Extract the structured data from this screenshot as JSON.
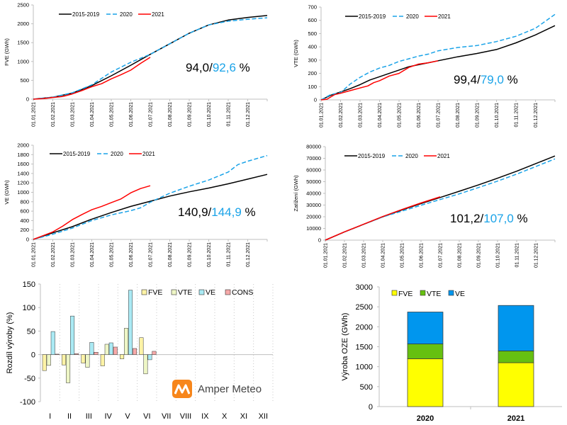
{
  "chart_data": [
    {
      "id": "fve",
      "type": "line",
      "ylabel": "FVE  (GWh)",
      "ylim": [
        0,
        2500
      ],
      "yticks": [
        0,
        500,
        1000,
        1500,
        2000,
        2500
      ],
      "x_ticks": [
        "01.01.2021",
        "01.02.2021",
        "01.03.2021",
        "01.04.2021",
        "01.05.2021",
        "01.06.2021",
        "01.07.2021",
        "01.08.2021",
        "01.09.2021",
        "01.10.2021",
        "01.11.2021",
        "01.12.2021"
      ],
      "x_unit": "month index (0 = 1 Jan, 12 = 31 Dec)",
      "annotation": {
        "black": "94,0/",
        "blue": "92,6",
        "suffix": " %"
      },
      "series": [
        {
          "name": "2015-2019",
          "color": "#000000",
          "style": "solid",
          "x": [
            0,
            1,
            2,
            3,
            4,
            5,
            6,
            7,
            8,
            9,
            10,
            11,
            12
          ],
          "y": [
            0,
            50,
            160,
            360,
            620,
            900,
            1190,
            1470,
            1750,
            1970,
            2100,
            2170,
            2220
          ]
        },
        {
          "name": "2020",
          "color": "#1aa3e8",
          "style": "dashed",
          "x": [
            0,
            1,
            2,
            3,
            4,
            5,
            6,
            7,
            8,
            9,
            10,
            11,
            12
          ],
          "y": [
            0,
            55,
            170,
            380,
            720,
            980,
            1190,
            1470,
            1750,
            1970,
            2070,
            2120,
            2160
          ]
        },
        {
          "name": "2021",
          "color": "#ff0000",
          "style": "solid",
          "x": [
            0,
            0.5,
            1,
            1.5,
            2,
            2.5,
            3,
            3.5,
            4,
            4.5,
            5,
            5.5,
            6
          ],
          "y": [
            0,
            15,
            45,
            70,
            140,
            230,
            330,
            410,
            540,
            650,
            770,
            950,
            1110
          ]
        }
      ]
    },
    {
      "id": "vte",
      "type": "line",
      "ylabel": "VTE  (GWh)",
      "ylim": [
        0,
        700
      ],
      "yticks": [
        0,
        100,
        200,
        300,
        400,
        500,
        600,
        700
      ],
      "x_ticks": [
        "01.01.2021",
        "01.02.2021",
        "01.03.2021",
        "01.04.2021",
        "01.05.2021",
        "01.06.2021",
        "01.07.2021",
        "01.08.2021",
        "01.09.2021",
        "01.10.2021",
        "01.11.2021",
        "01.12.2021"
      ],
      "annotation": {
        "black": "99,4/",
        "blue": "79,0",
        "suffix": " %"
      },
      "series": [
        {
          "name": "2015-2019",
          "color": "#000000",
          "style": "solid",
          "x": [
            0,
            0.5,
            1,
            1.5,
            2,
            2.5,
            3,
            3.5,
            4,
            4.5,
            5,
            5.5,
            6,
            7,
            8,
            9,
            10,
            11,
            12
          ],
          "y": [
            0,
            35,
            60,
            85,
            115,
            150,
            175,
            200,
            225,
            250,
            265,
            280,
            295,
            325,
            350,
            380,
            430,
            490,
            560
          ]
        },
        {
          "name": "2020",
          "color": "#1aa3e8",
          "style": "dashed",
          "x": [
            0,
            0.5,
            1,
            1.5,
            2,
            2.5,
            3,
            3.5,
            4,
            4.5,
            5,
            5.5,
            6,
            7,
            8,
            9,
            10,
            11,
            12
          ],
          "y": [
            0,
            40,
            55,
            120,
            170,
            210,
            240,
            260,
            290,
            310,
            330,
            345,
            370,
            395,
            410,
            440,
            480,
            540,
            645
          ]
        },
        {
          "name": "2021",
          "color": "#ff0000",
          "style": "solid",
          "x": [
            0,
            0.3,
            0.7,
            1,
            1.5,
            2,
            2.4,
            2.7,
            3,
            3.5,
            4,
            4.5,
            5,
            5.5,
            6
          ],
          "y": [
            0,
            5,
            40,
            50,
            70,
            90,
            105,
            130,
            145,
            180,
            200,
            245,
            270,
            280,
            295
          ]
        }
      ]
    },
    {
      "id": "ve",
      "type": "line",
      "ylabel": "VE  (GWh)",
      "ylim": [
        0,
        2000
      ],
      "yticks": [
        0,
        200,
        400,
        600,
        800,
        1000,
        1200,
        1400,
        1600,
        1800,
        2000
      ],
      "x_ticks": [
        "01.01.2021",
        "01.02.2021",
        "01.03.2021",
        "01.04.2021",
        "01.05.2021",
        "01.06.2021",
        "01.07.2021",
        "01.08.2021",
        "01.09.2021",
        "01.10.2021",
        "01.11.2021",
        "01.12.2021"
      ],
      "annotation": {
        "black": "140,9/",
        "blue": "144,9",
        "suffix": " %"
      },
      "series": [
        {
          "name": "2015-2019",
          "color": "#000000",
          "style": "solid",
          "x": [
            0,
            1,
            2,
            3,
            4,
            5,
            6,
            7,
            8,
            9,
            10,
            11,
            12
          ],
          "y": [
            0,
            140,
            270,
            430,
            570,
            700,
            810,
            920,
            1010,
            1090,
            1180,
            1280,
            1380
          ]
        },
        {
          "name": "2020",
          "color": "#1aa3e8",
          "style": "dashed",
          "x": [
            0,
            1,
            2,
            3,
            4,
            5,
            5.5,
            6,
            7,
            8,
            9,
            10,
            10.5,
            11,
            12
          ],
          "y": [
            0,
            110,
            240,
            400,
            520,
            610,
            670,
            790,
            980,
            1130,
            1260,
            1430,
            1590,
            1660,
            1780
          ]
        },
        {
          "name": "2021",
          "color": "#ff0000",
          "style": "solid",
          "x": [
            0,
            0.5,
            1,
            1.5,
            2,
            2.5,
            3,
            3.5,
            4,
            4.5,
            5,
            5.5,
            6
          ],
          "y": [
            0,
            80,
            160,
            280,
            420,
            530,
            630,
            700,
            780,
            860,
            990,
            1080,
            1140
          ]
        }
      ]
    },
    {
      "id": "zatizeni",
      "type": "line",
      "ylabel": "Zatížení  (GWh)",
      "ylim": [
        0,
        80000
      ],
      "yticks": [
        0,
        10000,
        20000,
        30000,
        40000,
        50000,
        60000,
        70000,
        80000
      ],
      "x_ticks": [
        "01.01.2021",
        "01.02.2021",
        "01.03.2021",
        "01.04.2021",
        "01.05.2021",
        "01.06.2021",
        "01.07.2021",
        "01.08.2021",
        "01.09.2021",
        "01.10.2021",
        "01.11.2021",
        "01.12.2021"
      ],
      "annotation": {
        "black": "101,2/",
        "blue": "107,0",
        "suffix": " %"
      },
      "series": [
        {
          "name": "2015-2019",
          "color": "#000000",
          "style": "solid",
          "x": [
            0,
            1,
            2,
            3,
            4,
            5,
            6,
            7,
            8,
            9,
            10,
            11,
            12
          ],
          "y": [
            0,
            7000,
            13500,
            20000,
            25800,
            31300,
            36500,
            41800,
            47200,
            53000,
            59000,
            65500,
            72000
          ]
        },
        {
          "name": "2020",
          "color": "#1aa3e8",
          "style": "dashed",
          "x": [
            0,
            1,
            2,
            3,
            4,
            5,
            6,
            7,
            8,
            9,
            10,
            11,
            12
          ],
          "y": [
            0,
            7000,
            13500,
            19800,
            24800,
            29800,
            34700,
            39600,
            45000,
            50500,
            56500,
            63000,
            69500
          ]
        },
        {
          "name": "2021",
          "color": "#ff0000",
          "style": "solid",
          "x": [
            0,
            1,
            2,
            3,
            4,
            5,
            6
          ],
          "y": [
            0,
            7100,
            13600,
            20200,
            26200,
            31800,
            37000
          ]
        }
      ]
    },
    {
      "id": "rozdil",
      "type": "bar",
      "ylabel": "Rozdíl výroby (%)",
      "ylim": [
        -100,
        150
      ],
      "yticks": [
        -100,
        -50,
        0,
        50,
        100,
        150
      ],
      "categories": [
        "I",
        "II",
        "III",
        "IV",
        "V",
        "VI",
        "VII",
        "VIII",
        "IX",
        "X",
        "XI",
        "XII"
      ],
      "series": [
        {
          "name": "FVE",
          "color": "#fdf3a6",
          "values": [
            -34,
            -22,
            -18,
            -24,
            -9,
            36,
            null,
            null,
            null,
            null,
            null,
            null
          ]
        },
        {
          "name": "VTE",
          "color": "#eef6c6",
          "values": [
            -23,
            -60,
            -27,
            22,
            56,
            -41,
            null,
            null,
            null,
            null,
            null,
            null
          ]
        },
        {
          "name": "VE",
          "color": "#aaeaf4",
          "values": [
            49,
            82,
            26,
            25,
            137,
            -11,
            null,
            null,
            null,
            null,
            null,
            null
          ]
        },
        {
          "name": "CONS",
          "color": "#f6a9a9",
          "values": [
            1,
            2,
            5,
            16,
            13,
            7,
            null,
            null,
            null,
            null,
            null,
            null
          ]
        }
      ]
    },
    {
      "id": "vyroba-oze",
      "type": "bar",
      "stacked": true,
      "ylabel": "Výroba OZE (GWh)",
      "ylim": [
        0,
        3000
      ],
      "yticks": [
        0,
        500,
        1000,
        1500,
        2000,
        2500,
        3000
      ],
      "categories": [
        "2020",
        "2021"
      ],
      "series": [
        {
          "name": "FVE",
          "color": "#ffff00",
          "values": [
            1200,
            1100
          ]
        },
        {
          "name": "VTE",
          "color": "#66c010",
          "values": [
            370,
            295
          ]
        },
        {
          "name": "VE",
          "color": "#0096ee",
          "values": [
            800,
            1140
          ]
        }
      ]
    }
  ],
  "logo": {
    "text": "Amper Meteo",
    "color": "#f7861b"
  }
}
